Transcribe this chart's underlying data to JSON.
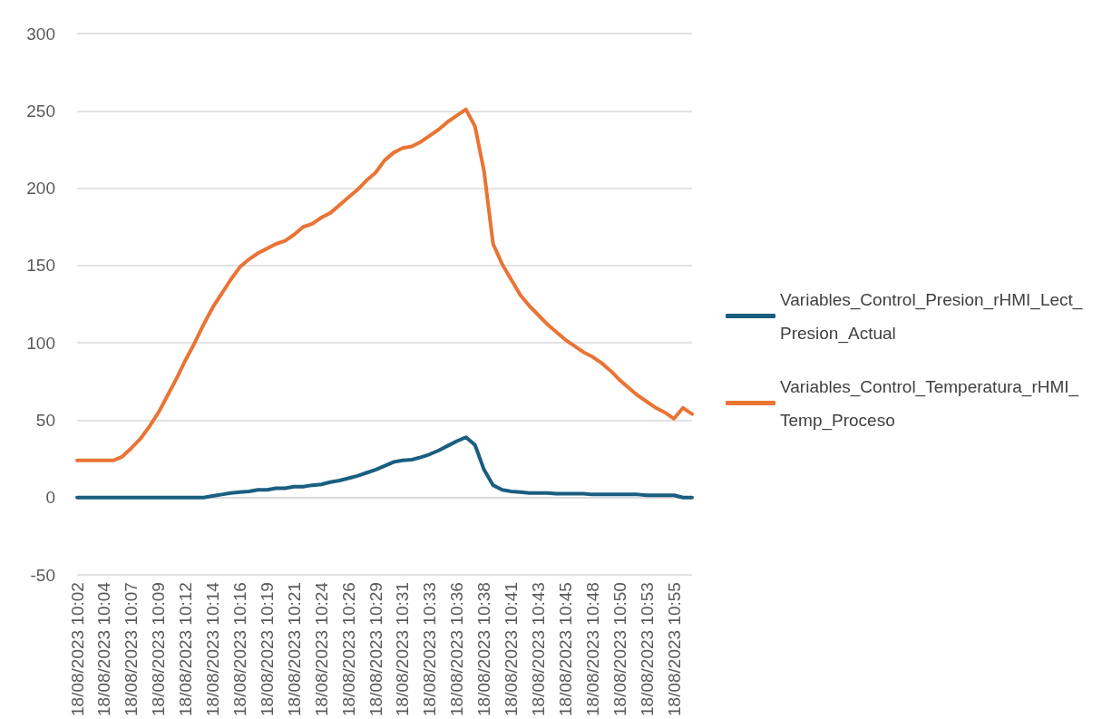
{
  "chart_data": {
    "type": "line",
    "categories": [
      "18/08/2023 10:02",
      null,
      null,
      "18/08/2023 10:04",
      null,
      null,
      "18/08/2023 10:07",
      null,
      null,
      "18/08/2023 10:09",
      null,
      null,
      "18/08/2023 10:12",
      null,
      null,
      "18/08/2023 10:14",
      null,
      null,
      "18/08/2023 10:16",
      null,
      null,
      "18/08/2023 10:19",
      null,
      null,
      "18/08/2023 10:21",
      null,
      null,
      "18/08/2023 10:24",
      null,
      null,
      "18/08/2023 10:26",
      null,
      null,
      "18/08/2023 10:29",
      null,
      null,
      "18/08/2023 10:31",
      null,
      null,
      "18/08/2023 10:33",
      null,
      null,
      "18/08/2023 10:36",
      null,
      null,
      "18/08/2023 10:38",
      null,
      null,
      "18/08/2023 10:41",
      null,
      null,
      "18/08/2023 10:43",
      null,
      null,
      "18/08/2023 10:45",
      null,
      null,
      "18/08/2023 10:48",
      null,
      null,
      "18/08/2023 10:50",
      null,
      null,
      "18/08/2023 10:53",
      null,
      null,
      "18/08/2023 10:55",
      null,
      null
    ],
    "series": [
      {
        "name": "Variables_Control_Presion_rHMI_Lect_Presion_Actual",
        "color": "#1a5e80",
        "values": [
          0,
          0,
          0,
          0,
          0,
          0,
          0,
          0,
          0,
          0,
          0,
          0,
          0,
          0,
          0,
          1,
          2,
          3,
          3.5,
          4,
          5,
          5,
          6,
          6,
          7,
          7,
          8,
          8.5,
          10,
          11,
          12.5,
          14,
          16,
          18,
          20.5,
          23,
          24,
          24.5,
          26,
          28,
          30.5,
          33.5,
          36.5,
          39,
          34,
          18,
          8,
          5,
          4,
          3.5,
          3,
          3,
          3,
          2.5,
          2.5,
          2.5,
          2.5,
          2,
          2,
          2,
          2,
          2,
          2,
          1.5,
          1.5,
          1.5,
          1.5,
          0,
          0
        ]
      },
      {
        "name": "Variables_Control_Temperatura_rHMI_Temp_Proceso",
        "color": "#e97434",
        "values": [
          24,
          24,
          24,
          24,
          24,
          26.5,
          32,
          38,
          46,
          55,
          66,
          77,
          89,
          100,
          112,
          123,
          132,
          141,
          149,
          154,
          158,
          161,
          164,
          166,
          170,
          175,
          177,
          181,
          184,
          189,
          194,
          199,
          205,
          210,
          218,
          223,
          226,
          227,
          230,
          234,
          238,
          243,
          247,
          251,
          240,
          211,
          164,
          151,
          141,
          131,
          124,
          118,
          112,
          107,
          102,
          98,
          94,
          91,
          87,
          82,
          76,
          71,
          66,
          62,
          58,
          55,
          51,
          58,
          54
        ]
      }
    ],
    "ylim": [
      -50,
      300
    ],
    "yticks": [
      -50,
      0,
      50,
      100,
      150,
      200,
      250,
      300
    ],
    "grid": "y",
    "legend": "right",
    "marker": "none",
    "line_style": "solid"
  }
}
